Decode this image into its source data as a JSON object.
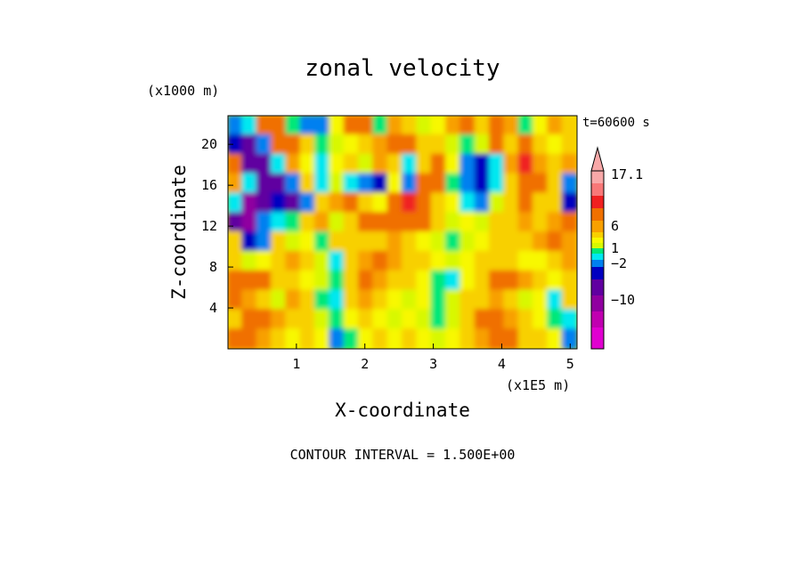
{
  "chart_data": {
    "type": "heatmap",
    "title": "zonal velocity",
    "xlabel": "X-coordinate",
    "ylabel": "Z-coordinate",
    "x_unit": "(x1E5 m)",
    "y_unit": "(x1000 m)",
    "time_label": "t=60600 s",
    "footer": "CONTOUR INTERVAL = 1.500E+00",
    "x_ticks": [
      "1",
      "2",
      "3",
      "4",
      "5"
    ],
    "y_ticks": [
      "20",
      "16",
      "12",
      "8",
      "4"
    ],
    "xlim": [
      0,
      5.1
    ],
    "ylim": [
      0,
      22.8
    ],
    "x_tick_values": [
      1,
      2,
      3,
      4,
      5
    ],
    "y_tick_values": [
      20,
      16,
      12,
      8,
      4
    ],
    "colorbar_labels": [
      "17.1",
      "6",
      "1",
      "−2",
      "−10"
    ],
    "colorbar_colors": [
      "#f8a8a8",
      "#f87878",
      "#f02020",
      "#f07000",
      "#f8a000",
      "#f8d000",
      "#f8f800",
      "#d8f800",
      "#00e878",
      "#00e8f0",
      "#0080f0",
      "#0000c0",
      "#6000a0",
      "#9000a0",
      "#c000b0",
      "#e000d0"
    ],
    "grid": false,
    "legend": "colorbar-right",
    "note": "2D contour field; cells are a coarse approximation of the plotted field, values in m/s",
    "nx": 24,
    "ny": 12,
    "values": [
      [
        -3,
        -2,
        5,
        6,
        -1,
        -3,
        -3,
        1,
        5,
        6,
        -1,
        4,
        3,
        0,
        1,
        4,
        5,
        2,
        6,
        4,
        -1,
        1,
        4,
        3
      ],
      [
        -6,
        -9,
        -3,
        5,
        6,
        2,
        -1,
        0,
        1,
        3,
        4,
        6,
        5,
        2,
        3,
        0,
        -1,
        0,
        5,
        3,
        5,
        2,
        1,
        3
      ],
      [
        5,
        -8,
        -9,
        -2,
        4,
        1,
        -2,
        1,
        2,
        0,
        4,
        3,
        -2,
        3,
        5,
        1,
        -3,
        -6,
        -2,
        4,
        7,
        4,
        2,
        4
      ],
      [
        4,
        -2,
        -8,
        -10,
        -3,
        2,
        -2,
        0,
        -2,
        -3,
        -5,
        1,
        -3,
        5,
        6,
        -1,
        -4,
        -7,
        -2,
        2,
        6,
        5,
        3,
        -3
      ],
      [
        -2,
        -11,
        -10,
        -6,
        -8,
        -3,
        2,
        4,
        5,
        3,
        1,
        5,
        7,
        6,
        3,
        1,
        -2,
        -4,
        0,
        3,
        5,
        3,
        2,
        -5
      ],
      [
        -9,
        -12,
        -3,
        -2,
        -1,
        3,
        4,
        0,
        2,
        5,
        6,
        5,
        6,
        5,
        3,
        0,
        1,
        0,
        2,
        3,
        4,
        3,
        4,
        5
      ],
      [
        3,
        -5,
        -3,
        2,
        0,
        1,
        -1,
        2,
        3,
        2,
        3,
        4,
        3,
        1,
        0,
        -1,
        0,
        1,
        2,
        3,
        3,
        4,
        5,
        4
      ],
      [
        2,
        0,
        1,
        3,
        4,
        2,
        0,
        -2,
        3,
        4,
        5,
        4,
        3,
        2,
        1,
        0,
        1,
        2,
        3,
        2,
        1,
        1,
        3,
        4
      ],
      [
        5,
        6,
        5,
        2,
        3,
        1,
        0,
        -1,
        2,
        5,
        4,
        3,
        2,
        1,
        -1,
        -2,
        1,
        3,
        5,
        6,
        4,
        2,
        1,
        2
      ],
      [
        6,
        4,
        2,
        0,
        4,
        2,
        -1,
        -2,
        3,
        4,
        2,
        1,
        0,
        1,
        -1,
        0,
        2,
        3,
        4,
        2,
        0,
        1,
        -2,
        3
      ],
      [
        3,
        5,
        6,
        4,
        2,
        3,
        0,
        -1,
        1,
        2,
        1,
        0,
        1,
        0,
        -1,
        0,
        2,
        5,
        6,
        4,
        2,
        1,
        -1,
        -2
      ],
      [
        6,
        5,
        4,
        3,
        1,
        2,
        1,
        -3,
        -1,
        1,
        2,
        1,
        2,
        1,
        0,
        1,
        3,
        4,
        6,
        5,
        3,
        2,
        1,
        -3
      ]
    ]
  }
}
